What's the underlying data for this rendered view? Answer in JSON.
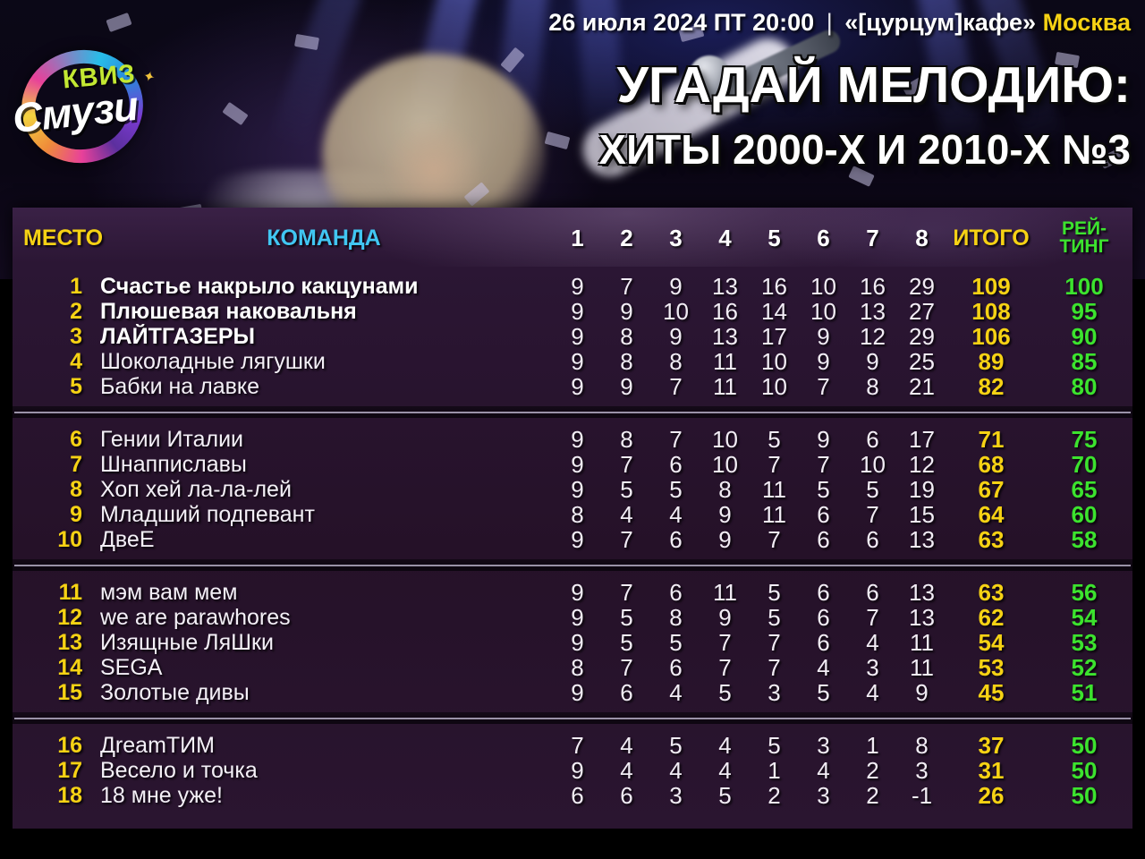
{
  "event": {
    "datetime": "26 июля 2024 ПТ 20:00",
    "pipe": "|",
    "venue": "«[цурцум]кафе»",
    "city": "Москва",
    "title_line1": "УГАДАЙ МЕЛОДИЮ:",
    "title_line2": "ХИТЫ 2000-Х И 2010-Х №3"
  },
  "logo": {
    "line1": "КВИЗ",
    "line2": "Смузи",
    "star": "✦"
  },
  "table_header": {
    "place": "МЕСТО",
    "team": "КОМАНДА",
    "rounds": [
      "1",
      "2",
      "3",
      "4",
      "5",
      "6",
      "7",
      "8"
    ],
    "total": "ИТОГО",
    "rating_line1": "РЕЙ-",
    "rating_line2": "ТИНГ"
  },
  "colors": {
    "accent_yellow": "#f6d214",
    "accent_cyan": "#41c6f2",
    "accent_green": "#3ce32e",
    "logo_lime": "#c3e832",
    "table_bg": "#251128",
    "separator_line": "#aaa2b8"
  },
  "chart_data": {
    "type": "table",
    "title": "УГАДАЙ МЕЛОДИЮ: ХИТЫ 2000-Х И 2010-Х №3",
    "columns": [
      "МЕСТО",
      "КОМАНДА",
      "1",
      "2",
      "3",
      "4",
      "5",
      "6",
      "7",
      "8",
      "ИТОГО",
      "РЕЙТИНГ"
    ],
    "bold_places": [
      "1",
      "2",
      "3"
    ],
    "group_breaks_after_place": [
      "5",
      "10",
      "15"
    ],
    "rows": [
      {
        "place": "1",
        "team": "Счастье накрыло какцунами",
        "scores": [
          "9",
          "7",
          "9",
          "13",
          "16",
          "10",
          "16",
          "29"
        ],
        "total": "109",
        "rating": "100"
      },
      {
        "place": "2",
        "team": "Плюшевая наковальня",
        "scores": [
          "9",
          "9",
          "10",
          "16",
          "14",
          "10",
          "13",
          "27"
        ],
        "total": "108",
        "rating": "95"
      },
      {
        "place": "3",
        "team": "ЛАЙТГАЗЕРЫ",
        "scores": [
          "9",
          "8",
          "9",
          "13",
          "17",
          "9",
          "12",
          "29"
        ],
        "total": "106",
        "rating": "90"
      },
      {
        "place": "4",
        "team": "Шоколадные лягушки",
        "scores": [
          "9",
          "8",
          "8",
          "11",
          "10",
          "9",
          "9",
          "25"
        ],
        "total": "89",
        "rating": "85"
      },
      {
        "place": "5",
        "team": "Бабки на лавке",
        "scores": [
          "9",
          "9",
          "7",
          "11",
          "10",
          "7",
          "8",
          "21"
        ],
        "total": "82",
        "rating": "80"
      },
      {
        "place": "6",
        "team": "Гении Италии",
        "scores": [
          "9",
          "8",
          "7",
          "10",
          "5",
          "9",
          "6",
          "17"
        ],
        "total": "71",
        "rating": "75"
      },
      {
        "place": "7",
        "team": "Шнаппиславы",
        "scores": [
          "9",
          "7",
          "6",
          "10",
          "7",
          "7",
          "10",
          "12"
        ],
        "total": "68",
        "rating": "70"
      },
      {
        "place": "8",
        "team": "Хоп хей ла-ла-лей",
        "scores": [
          "9",
          "5",
          "5",
          "8",
          "11",
          "5",
          "5",
          "19"
        ],
        "total": "67",
        "rating": "65"
      },
      {
        "place": "9",
        "team": "Младший подпевант",
        "scores": [
          "8",
          "4",
          "4",
          "9",
          "11",
          "6",
          "7",
          "15"
        ],
        "total": "64",
        "rating": "60"
      },
      {
        "place": "10",
        "team": "ДвеЕ",
        "scores": [
          "9",
          "7",
          "6",
          "9",
          "7",
          "6",
          "6",
          "13"
        ],
        "total": "63",
        "rating": "58"
      },
      {
        "place": "11",
        "team": "мэм вам мем",
        "scores": [
          "9",
          "7",
          "6",
          "11",
          "5",
          "6",
          "6",
          "13"
        ],
        "total": "63",
        "rating": "56"
      },
      {
        "place": "12",
        "team": "we are parawhores",
        "scores": [
          "9",
          "5",
          "8",
          "9",
          "5",
          "6",
          "7",
          "13"
        ],
        "total": "62",
        "rating": "54"
      },
      {
        "place": "13",
        "team": "Изящные ЛяШки",
        "scores": [
          "9",
          "5",
          "5",
          "7",
          "7",
          "6",
          "4",
          "11"
        ],
        "total": "54",
        "rating": "53"
      },
      {
        "place": "14",
        "team": "SEGA",
        "scores": [
          "8",
          "7",
          "6",
          "7",
          "7",
          "4",
          "3",
          "11"
        ],
        "total": "53",
        "rating": "52"
      },
      {
        "place": "15",
        "team": "Золотые дивы",
        "scores": [
          "9",
          "6",
          "4",
          "5",
          "3",
          "5",
          "4",
          "9"
        ],
        "total": "45",
        "rating": "51"
      },
      {
        "place": "16",
        "team": "ДreamТИМ",
        "scores": [
          "7",
          "4",
          "5",
          "4",
          "5",
          "3",
          "1",
          "8"
        ],
        "total": "37",
        "rating": "50"
      },
      {
        "place": "17",
        "team": "Весело и точка",
        "scores": [
          "9",
          "4",
          "4",
          "4",
          "1",
          "4",
          "2",
          "3"
        ],
        "total": "31",
        "rating": "50"
      },
      {
        "place": "18",
        "team": "18 мне уже!",
        "scores": [
          "6",
          "6",
          "3",
          "5",
          "2",
          "3",
          "2",
          "-1"
        ],
        "total": "26",
        "rating": "50"
      }
    ]
  }
}
